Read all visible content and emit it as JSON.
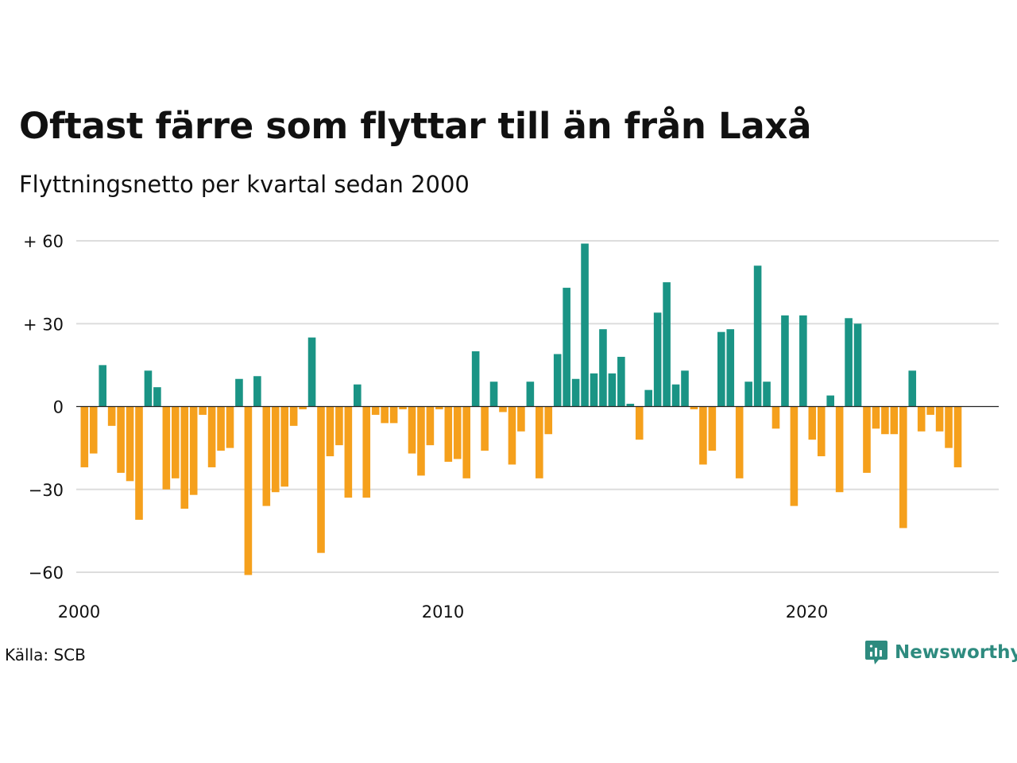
{
  "header": {
    "title": "Oftast färre som flyttar till än från Laxå",
    "subtitle": "Flyttningsnetto per kvartal sedan 2000"
  },
  "footer": {
    "source": "Källa: SCB",
    "brand": "Newsworthy"
  },
  "colors": {
    "positive": "#1a9485",
    "negative": "#f5a01c",
    "grid": "#dddddd",
    "brand": "#2e8b7f"
  },
  "chart_data": {
    "type": "bar",
    "title": "Oftast färre som flyttar till än från Laxå",
    "subtitle": "Flyttningsnetto per kvartal sedan 2000",
    "start_year": 2000,
    "ylim": [
      -65,
      60
    ],
    "yticks": [
      {
        "value": 60,
        "label": "+ 60"
      },
      {
        "value": 30,
        "label": "+ 30"
      },
      {
        "value": 0,
        "label": "0"
      },
      {
        "value": -30,
        "label": "−30"
      },
      {
        "value": -60,
        "label": "−60"
      }
    ],
    "xticks": [
      {
        "year": 2000,
        "label": "2000"
      },
      {
        "year": 2010,
        "label": "2010"
      },
      {
        "year": 2020,
        "label": "2020"
      }
    ],
    "grid": true,
    "values": [
      -22,
      -17,
      15,
      -7,
      -24,
      -27,
      -41,
      13,
      7,
      -30,
      -26,
      -37,
      -32,
      -3,
      -22,
      -16,
      -15,
      10,
      -61,
      11,
      -36,
      -31,
      -29,
      -7,
      -1,
      25,
      -53,
      -18,
      -14,
      -33,
      8,
      -33,
      -3,
      -6,
      -6,
      -1,
      -17,
      -25,
      -14,
      -1,
      -20,
      -19,
      -26,
      20,
      -16,
      9,
      -2,
      -21,
      -9,
      9,
      -26,
      -10,
      19,
      43,
      10,
      59,
      12,
      28,
      12,
      18,
      1,
      -12,
      6,
      34,
      45,
      8,
      13,
      -1,
      -21,
      -16,
      27,
      28,
      -26,
      9,
      51,
      9,
      -8,
      33,
      -36,
      33,
      -12,
      -18,
      4,
      -31,
      32,
      30,
      -24,
      -8,
      -10,
      -10,
      -44,
      13,
      -9,
      -3,
      -9,
      -15,
      -22
    ]
  }
}
